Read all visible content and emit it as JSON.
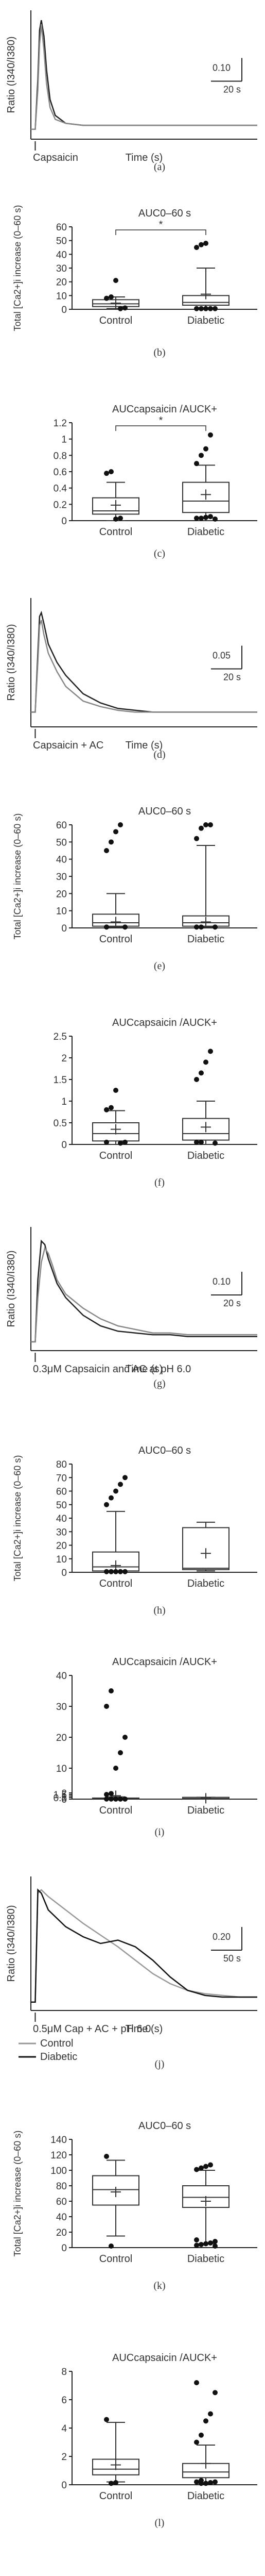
{
  "figure": {
    "panels": [
      {
        "id": "a",
        "caption": "(a)"
      },
      {
        "id": "b",
        "caption": "(b)"
      },
      {
        "id": "c",
        "caption": "(c)"
      },
      {
        "id": "d",
        "caption": "(d)"
      },
      {
        "id": "e",
        "caption": "(e)"
      },
      {
        "id": "f",
        "caption": "(f)"
      },
      {
        "id": "g",
        "caption": "(g)"
      },
      {
        "id": "h",
        "caption": "(h)"
      },
      {
        "id": "i",
        "caption": "(i)"
      },
      {
        "id": "j",
        "caption": "(j)"
      },
      {
        "id": "k",
        "caption": "(k)"
      },
      {
        "id": "l",
        "caption": "(l)"
      }
    ]
  },
  "chart_data": [
    {
      "panel": "a",
      "type": "line",
      "title": "",
      "xlabel": "Time (s)",
      "ylabel": "Ratio (I340/I380)",
      "stimulus_label": "Capsaicin",
      "scale_bar": {
        "y_label": "0.10",
        "x_label": "20 s"
      },
      "series": [
        {
          "name": "",
          "color": "#222222",
          "x": [
            0,
            5,
            8,
            10,
            12,
            15,
            18,
            22,
            28,
            40,
            60,
            80,
            100,
            120,
            140,
            160,
            180,
            200,
            230,
            260
          ],
          "y": [
            0.05,
            0.05,
            0.3,
            0.55,
            0.6,
            0.52,
            0.35,
            0.2,
            0.12,
            0.08,
            0.07,
            0.07,
            0.07,
            0.07,
            0.07,
            0.07,
            0.07,
            0.07,
            0.07,
            0.07
          ]
        },
        {
          "name": "",
          "color": "#888888",
          "x": [
            0,
            5,
            8,
            10,
            12,
            15,
            18,
            22,
            28,
            40,
            60,
            80,
            100,
            120,
            140,
            160,
            180,
            200,
            230,
            260
          ],
          "y": [
            0.05,
            0.05,
            0.25,
            0.48,
            0.58,
            0.45,
            0.28,
            0.16,
            0.1,
            0.08,
            0.07,
            0.07,
            0.07,
            0.07,
            0.07,
            0.07,
            0.07,
            0.07,
            0.07,
            0.07
          ]
        }
      ],
      "xlim": [
        0,
        260
      ],
      "ylim": [
        0,
        0.65
      ]
    },
    {
      "panel": "b",
      "type": "box",
      "title": "AUC0–60 s",
      "ylabel": "Total [Ca2+]i increase (0–60 s)",
      "yticks": [
        0,
        10,
        20,
        30,
        40,
        50,
        60
      ],
      "ylim": [
        0,
        60
      ],
      "significance": "*",
      "groups": [
        {
          "name": "Control",
          "whisker_low": 0.5,
          "q1": 2,
          "median": 4,
          "q3": 7,
          "whisker_high": 9,
          "mean": 4.5,
          "outliers_high": [
            8,
            9,
            21
          ],
          "outliers_low": [
            0.5,
            1
          ]
        },
        {
          "name": "Diabetic",
          "whisker_low": 0.5,
          "q1": 3,
          "median": 5,
          "q3": 10,
          "whisker_high": 30,
          "mean": 11,
          "outliers_high": [
            45,
            47,
            48
          ],
          "outliers_low": [
            0.5,
            0.5,
            0.5,
            0.5,
            0.5
          ]
        }
      ]
    },
    {
      "panel": "c",
      "type": "box",
      "title": "AUCcapsaicin /AUCK+",
      "ylabel": "",
      "yticks": [
        0.0,
        0.2,
        0.4,
        0.6,
        0.8,
        1.0,
        1.2
      ],
      "ylim": [
        0,
        1.2
      ],
      "significance": "*",
      "groups": [
        {
          "name": "Control",
          "whisker_low": 0.0,
          "q1": 0.08,
          "median": 0.12,
          "q3": 0.28,
          "whisker_high": 0.47,
          "mean": 0.19,
          "outliers_high": [
            0.58,
            0.6
          ],
          "outliers_low": [
            0.02,
            0.03
          ]
        },
        {
          "name": "Diabetic",
          "whisker_low": 0.0,
          "q1": 0.1,
          "median": 0.24,
          "q3": 0.47,
          "whisker_high": 0.68,
          "mean": 0.32,
          "outliers_high": [
            0.7,
            0.8,
            0.88,
            1.05
          ],
          "outliers_low": [
            0.02,
            0.03,
            0.03,
            0.04,
            0.05
          ]
        }
      ]
    },
    {
      "panel": "d",
      "type": "line",
      "title": "",
      "xlabel": "Time (s)",
      "ylabel": "Ratio (I340/I380)",
      "stimulus_label": "Capsaicin + AC",
      "scale_bar": {
        "y_label": "0.05",
        "x_label": "20 s"
      },
      "series": [
        {
          "name": "",
          "color": "#222222",
          "x": [
            0,
            5,
            8,
            10,
            12,
            15,
            20,
            30,
            40,
            60,
            80,
            100,
            120,
            140,
            160,
            180,
            200,
            230,
            260
          ],
          "y": [
            0.08,
            0.08,
            0.4,
            0.6,
            0.62,
            0.56,
            0.45,
            0.35,
            0.28,
            0.18,
            0.13,
            0.1,
            0.09,
            0.08,
            0.08,
            0.08,
            0.08,
            0.08,
            0.08
          ]
        },
        {
          "name": "",
          "color": "#888888",
          "x": [
            0,
            5,
            8,
            10,
            12,
            15,
            20,
            30,
            40,
            60,
            80,
            100,
            120,
            140,
            160,
            180,
            200,
            230,
            260
          ],
          "y": [
            0.08,
            0.08,
            0.35,
            0.55,
            0.58,
            0.5,
            0.4,
            0.3,
            0.22,
            0.14,
            0.11,
            0.09,
            0.08,
            0.08,
            0.08,
            0.08,
            0.08,
            0.08,
            0.08
          ]
        }
      ],
      "xlim": [
        0,
        260
      ],
      "ylim": [
        0,
        0.7
      ]
    },
    {
      "panel": "e",
      "type": "box",
      "title": "AUC0–60 s",
      "ylabel": "Total [Ca2+]i increase (0–60 s)",
      "yticks": [
        0,
        10,
        20,
        30,
        40,
        50,
        60
      ],
      "ylim": [
        0,
        60
      ],
      "groups": [
        {
          "name": "Control",
          "whisker_low": 0.5,
          "q1": 1,
          "median": 3,
          "q3": 8,
          "whisker_high": 20,
          "mean": 3.5,
          "outliers_high": [
            45,
            50,
            56,
            60
          ],
          "outliers_low": [
            0.5,
            0.5
          ]
        },
        {
          "name": "Diabetic",
          "whisker_low": 0.5,
          "q1": 1,
          "median": 3,
          "q3": 7,
          "whisker_high": 48,
          "mean": 3.5,
          "outliers_high": [
            52,
            58,
            60,
            62
          ],
          "outliers_low": [
            0.5,
            0.5,
            0.5
          ]
        }
      ]
    },
    {
      "panel": "f",
      "type": "box",
      "title": "AUCcapsaicin /AUCK+",
      "ylabel": "",
      "yticks": [
        0.0,
        0.5,
        1.0,
        1.5,
        2.0,
        2.5
      ],
      "ylim": [
        0,
        2.5
      ],
      "groups": [
        {
          "name": "Control",
          "whisker_low": 0.0,
          "q1": 0.08,
          "median": 0.25,
          "q3": 0.5,
          "whisker_high": 0.78,
          "mean": 0.35,
          "outliers_high": [
            0.8,
            0.85,
            1.25
          ],
          "outliers_low": [
            0.03,
            0.05,
            0.05
          ]
        },
        {
          "name": "Diabetic",
          "whisker_low": 0.0,
          "q1": 0.1,
          "median": 0.25,
          "q3": 0.6,
          "whisker_high": 1.0,
          "mean": 0.4,
          "outliers_high": [
            1.5,
            1.65,
            1.9,
            2.15
          ],
          "outliers_low": [
            0.03,
            0.05,
            0.05
          ]
        }
      ]
    },
    {
      "panel": "g",
      "type": "line",
      "title": "",
      "xlabel": "Time (s)",
      "ylabel": "Ratio (I340/I380)",
      "stimulus_label": "0.3μM Capsaicin and AC at pH 6.0",
      "scale_bar": {
        "y_label": "0.10",
        "x_label": "20 s"
      },
      "series": [
        {
          "name": "",
          "color": "#222222",
          "x": [
            0,
            5,
            8,
            12,
            16,
            20,
            25,
            30,
            40,
            60,
            80,
            100,
            120,
            140,
            160,
            180,
            200,
            230,
            260
          ],
          "y": [
            0.05,
            0.05,
            0.4,
            0.62,
            0.6,
            0.52,
            0.45,
            0.38,
            0.3,
            0.2,
            0.14,
            0.11,
            0.1,
            0.09,
            0.09,
            0.08,
            0.08,
            0.08,
            0.08
          ]
        },
        {
          "name": "",
          "color": "#888888",
          "x": [
            0,
            5,
            8,
            12,
            16,
            20,
            25,
            30,
            40,
            60,
            80,
            100,
            120,
            140,
            160,
            180,
            200,
            230,
            260
          ],
          "y": [
            0.05,
            0.05,
            0.3,
            0.5,
            0.58,
            0.55,
            0.48,
            0.4,
            0.32,
            0.24,
            0.18,
            0.14,
            0.12,
            0.1,
            0.1,
            0.09,
            0.09,
            0.09,
            0.09
          ]
        }
      ],
      "xlim": [
        0,
        260
      ],
      "ylim": [
        0,
        0.7
      ]
    },
    {
      "panel": "h",
      "type": "box",
      "title": "AUC0–60 s",
      "ylabel": "Total [Ca2+]i increase (0–60 s)",
      "yticks": [
        0,
        10,
        20,
        30,
        40,
        50,
        60,
        70,
        80
      ],
      "ylim": [
        0,
        80
      ],
      "groups": [
        {
          "name": "Control",
          "whisker_low": 0.5,
          "q1": 1,
          "median": 4,
          "q3": 15,
          "whisker_high": 45,
          "mean": 5,
          "outliers_high": [
            50,
            55,
            60,
            65,
            70
          ],
          "outliers_low": [
            0.5,
            0.5,
            0.5,
            0.5,
            0.5
          ]
        },
        {
          "name": "Diabetic",
          "whisker_low": 1,
          "q1": 2,
          "median": 3,
          "q3": 33,
          "whisker_high": 37,
          "mean": 14,
          "outliers_high": [],
          "outliers_low": []
        }
      ]
    },
    {
      "panel": "i",
      "type": "box",
      "title": "AUCcapsaicin /AUCK+",
      "ylabel": "",
      "yticks": [
        0.0,
        0.5,
        1.0,
        1.5,
        2.0,
        10,
        20,
        30,
        40
      ],
      "ylim": [
        0,
        40
      ],
      "broken_axis": true,
      "groups": [
        {
          "name": "Control",
          "whisker_low": 0.0,
          "q1": 0.1,
          "median": 0.2,
          "q3": 0.35,
          "whisker_high": 0.72,
          "mean": 1.1,
          "outliers_high": [
            1.5,
            1.8,
            10,
            15,
            20,
            30,
            35
          ],
          "outliers_low": [
            0.02,
            0.03,
            0.03,
            0.04,
            0.05
          ]
        },
        {
          "name": "Diabetic",
          "whisker_low": 0.05,
          "q1": 0.08,
          "median": 0.18,
          "q3": 0.58,
          "whisker_high": 0.6,
          "mean": 0.28,
          "outliers_high": [],
          "outliers_low": []
        }
      ]
    },
    {
      "panel": "j",
      "type": "line",
      "title": "",
      "xlabel": "Time (s)",
      "ylabel": "Ratio (I340/I380)",
      "stimulus_label": "0.5μM Cap + AC + pH 6.0",
      "scale_bar": {
        "y_label": "0.20",
        "x_label": "50 s"
      },
      "series": [
        {
          "name": "Control",
          "color": "#999999",
          "x": [
            0,
            5,
            8,
            12,
            20,
            40,
            60,
            80,
            100,
            120,
            140,
            160,
            180,
            200,
            220,
            240,
            260
          ],
          "y": [
            0.05,
            0.05,
            0.7,
            0.72,
            0.68,
            0.6,
            0.52,
            0.45,
            0.38,
            0.3,
            0.22,
            0.16,
            0.12,
            0.1,
            0.09,
            0.08,
            0.08
          ]
        },
        {
          "name": "Diabetic",
          "color": "#111111",
          "x": [
            0,
            5,
            8,
            12,
            20,
            40,
            60,
            80,
            100,
            120,
            140,
            160,
            180,
            200,
            220,
            240,
            260
          ],
          "y": [
            0.05,
            0.05,
            0.72,
            0.7,
            0.6,
            0.5,
            0.44,
            0.4,
            0.42,
            0.38,
            0.3,
            0.2,
            0.12,
            0.09,
            0.08,
            0.08,
            0.08
          ]
        }
      ],
      "xlim": [
        0,
        260
      ],
      "ylim": [
        0,
        0.8
      ]
    },
    {
      "panel": "k",
      "type": "box",
      "title": "AUC0–60 s",
      "ylabel": "Total [Ca2+]i increase (0–60 s)",
      "yticks": [
        0,
        20,
        40,
        60,
        80,
        100,
        120,
        140
      ],
      "ylim": [
        0,
        140
      ],
      "groups": [
        {
          "name": "Control",
          "whisker_low": 15,
          "q1": 55,
          "median": 75,
          "q3": 93,
          "whisker_high": 113,
          "mean": 72,
          "outliers_high": [
            118
          ],
          "outliers_low": [
            2
          ]
        },
        {
          "name": "Diabetic",
          "whisker_low": 5,
          "q1": 52,
          "median": 65,
          "q3": 80,
          "whisker_high": 100,
          "mean": 60,
          "outliers_high": [
            101,
            103,
            105,
            107
          ],
          "outliers_low": [
            2,
            3,
            4,
            5,
            6,
            8,
            10
          ]
        }
      ]
    },
    {
      "panel": "l",
      "type": "box",
      "title": "AUCcapsaicin /AUCK+",
      "ylabel": "",
      "yticks": [
        0,
        2,
        4,
        6,
        8
      ],
      "ylim": [
        0,
        8
      ],
      "groups": [
        {
          "name": "Control",
          "whisker_low": 0.2,
          "q1": 0.7,
          "median": 1.1,
          "q3": 1.8,
          "whisker_high": 4.4,
          "mean": 1.4,
          "outliers_high": [
            4.6
          ],
          "outliers_low": [
            0.1,
            0.15
          ]
        },
        {
          "name": "Diabetic",
          "whisker_low": 0.1,
          "q1": 0.5,
          "median": 0.9,
          "q3": 1.5,
          "whisker_high": 2.8,
          "mean": 1.5,
          "outliers_high": [
            3.0,
            3.5,
            4.5,
            5.0,
            6.5,
            7.2
          ],
          "outliers_low": [
            0.1,
            0.1,
            0.15,
            0.2,
            0.2,
            0.3
          ]
        }
      ]
    }
  ]
}
